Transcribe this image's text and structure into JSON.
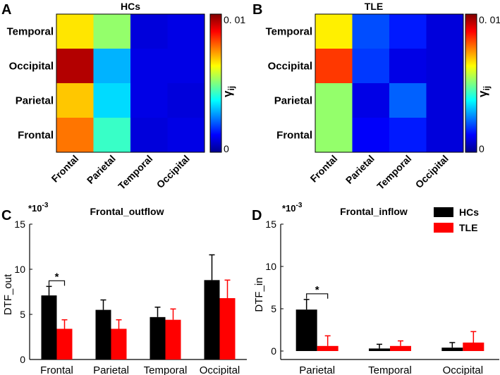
{
  "chart_data": [
    {
      "panel": "A",
      "type": "heatmap",
      "title": "HCs",
      "rows": [
        "Temporal",
        "Occipital",
        "Parietal",
        "Frontal"
      ],
      "columns": [
        "Frontal",
        "Parietal",
        "Temporal",
        "Occipital"
      ],
      "values": [
        [
          0.0065,
          0.0052,
          0.0009,
          0.001
        ],
        [
          0.0095,
          0.003,
          0.001,
          0.001
        ],
        [
          0.0068,
          0.0034,
          0.001,
          0.0009
        ],
        [
          0.0076,
          0.0043,
          0.0009,
          0.001
        ]
      ],
      "colorbar": {
        "min": 0,
        "max": 0.01,
        "min_label": "0",
        "max_label": "0. 01",
        "label": "γ",
        "label_sub": "ij"
      }
    },
    {
      "panel": "B",
      "type": "heatmap",
      "title": "TLE",
      "rows": [
        "Temporal",
        "Occipital",
        "Parietal",
        "Frontal"
      ],
      "columns": [
        "Frontal",
        "Parietal",
        "Temporal",
        "Occipital"
      ],
      "values": [
        [
          0.0064,
          0.002,
          0.0015,
          0.0009
        ],
        [
          0.0082,
          0.0018,
          0.001,
          0.0009
        ],
        [
          0.0052,
          0.001,
          0.0022,
          0.0009
        ],
        [
          0.0052,
          0.0012,
          0.0015,
          0.0009
        ]
      ],
      "colorbar": {
        "min": 0,
        "max": 0.01,
        "min_label": "0",
        "max_label": "0. 01",
        "label": "γ",
        "label_sub": "ij"
      }
    },
    {
      "panel": "C",
      "type": "bar",
      "title": "Frontal_outflow",
      "scale_label": "*10",
      "scale_exp": "-3",
      "ylabel": "DTF_out",
      "ylim": [
        0,
        15
      ],
      "yticks": [
        "0",
        "5",
        "10",
        "15"
      ],
      "categories": [
        "Frontal",
        "Parietal",
        "Temporal",
        "Occipital"
      ],
      "series": [
        {
          "name": "HCs",
          "color": "#000000",
          "values": [
            7.1,
            5.5,
            4.7,
            8.8
          ],
          "errors": [
            1.0,
            1.1,
            1.1,
            2.8
          ]
        },
        {
          "name": "TLE",
          "color": "#ff0000",
          "values": [
            3.4,
            3.4,
            4.4,
            6.8
          ],
          "errors": [
            1.0,
            1.0,
            1.2,
            2.0
          ]
        }
      ],
      "significance": [
        {
          "category_index": 0,
          "label": "*"
        }
      ]
    },
    {
      "panel": "D",
      "type": "bar",
      "title": "Frontal_inflow",
      "scale_label": "*10",
      "scale_exp": "-3",
      "ylabel": "DTF_in",
      "ylim": [
        -1,
        15
      ],
      "yticks": [
        "0",
        "5",
        "10",
        "15"
      ],
      "categories": [
        "Parietal",
        "Temporal",
        "Occipital"
      ],
      "series": [
        {
          "name": "HCs",
          "color": "#000000",
          "values": [
            4.9,
            0.3,
            0.4
          ],
          "errors": [
            1.2,
            0.5,
            0.6
          ]
        },
        {
          "name": "TLE",
          "color": "#ff0000",
          "values": [
            0.6,
            0.6,
            1.0
          ],
          "errors": [
            1.2,
            0.6,
            1.3
          ]
        }
      ],
      "significance": [
        {
          "category_index": 0,
          "label": "*"
        }
      ],
      "legend": {
        "position": "top-right",
        "entries": [
          "HCs",
          "TLE"
        ]
      }
    }
  ]
}
